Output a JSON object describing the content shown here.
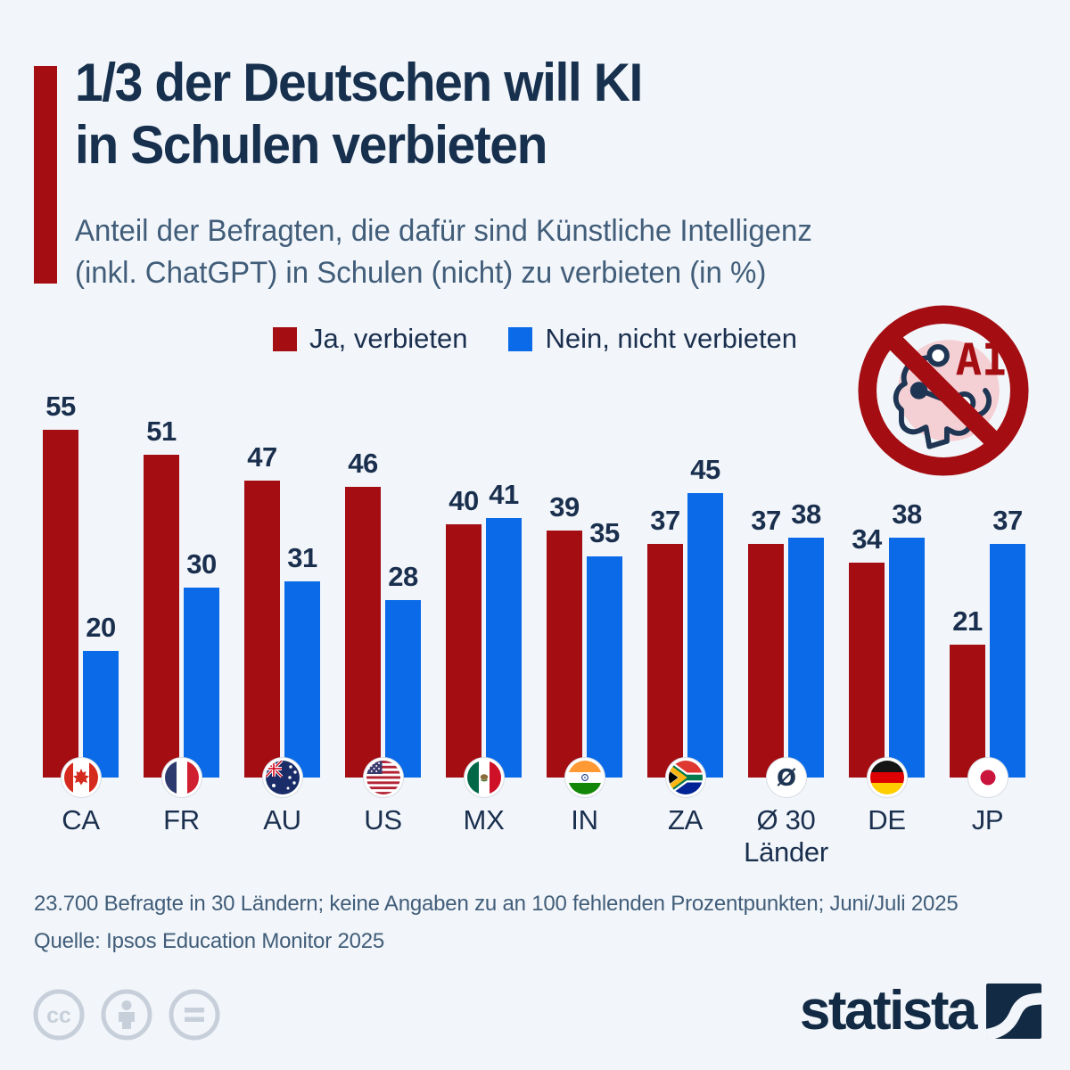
{
  "header": {
    "title_line1": "1/3 der Deutschen will KI",
    "title_line2": "in Schulen verbieten",
    "subtitle_line1": "Anteil der Befragten, die dafür sind Künstliche Intelligenz",
    "subtitle_line2": "(inkl. ChatGPT) in Schulen (nicht) zu verbieten (in %)"
  },
  "legend": [
    {
      "label": "Ja, verbieten",
      "color": "#a40d12"
    },
    {
      "label": "Nein, nicht verbieten",
      "color": "#0a6ae8"
    }
  ],
  "ai_ban_icon": {
    "label": "AI",
    "ring_color": "#a40d12",
    "inner_circle_color": "#f4cfd3",
    "circuit_color": "#1e3553"
  },
  "chart_data": {
    "type": "bar",
    "categories": [
      "CA",
      "FR",
      "AU",
      "US",
      "MX",
      "IN",
      "ZA",
      "Ø 30 Länder",
      "DE",
      "JP"
    ],
    "category_lines": [
      [
        "CA"
      ],
      [
        "FR"
      ],
      [
        "AU"
      ],
      [
        "US"
      ],
      [
        "MX"
      ],
      [
        "IN"
      ],
      [
        "ZA"
      ],
      [
        "Ø 30",
        "Länder"
      ],
      [
        "DE"
      ],
      [
        "JP"
      ]
    ],
    "flags": [
      "flag-ca",
      "flag-fr",
      "flag-au",
      "flag-us",
      "flag-mx",
      "flag-in",
      "flag-za",
      "average-symbol",
      "flag-de",
      "flag-jp"
    ],
    "average_symbol": "Ø",
    "series": [
      {
        "name": "Ja, verbieten",
        "color": "#a40d12",
        "values": [
          55,
          51,
          47,
          46,
          40,
          39,
          37,
          37,
          34,
          21
        ]
      },
      {
        "name": "Nein, nicht verbieten",
        "color": "#0a6ae8",
        "values": [
          20,
          30,
          31,
          28,
          41,
          35,
          45,
          38,
          38,
          37
        ]
      }
    ],
    "ylim": [
      0,
      60
    ],
    "unit": "%",
    "grid": false,
    "legend_position": "top-center"
  },
  "footer": {
    "note": "23.700 Befragte in 30 Ländern; keine Angaben zu an 100 fehlenden Prozentpunkten; Juni/Juli 2025",
    "source": "Quelle: Ipsos Education Monitor 2025"
  },
  "branding": {
    "logo_text": "statista",
    "license_icons": [
      "cc-icon",
      "attribution-person-icon",
      "no-derivatives-icon"
    ]
  }
}
